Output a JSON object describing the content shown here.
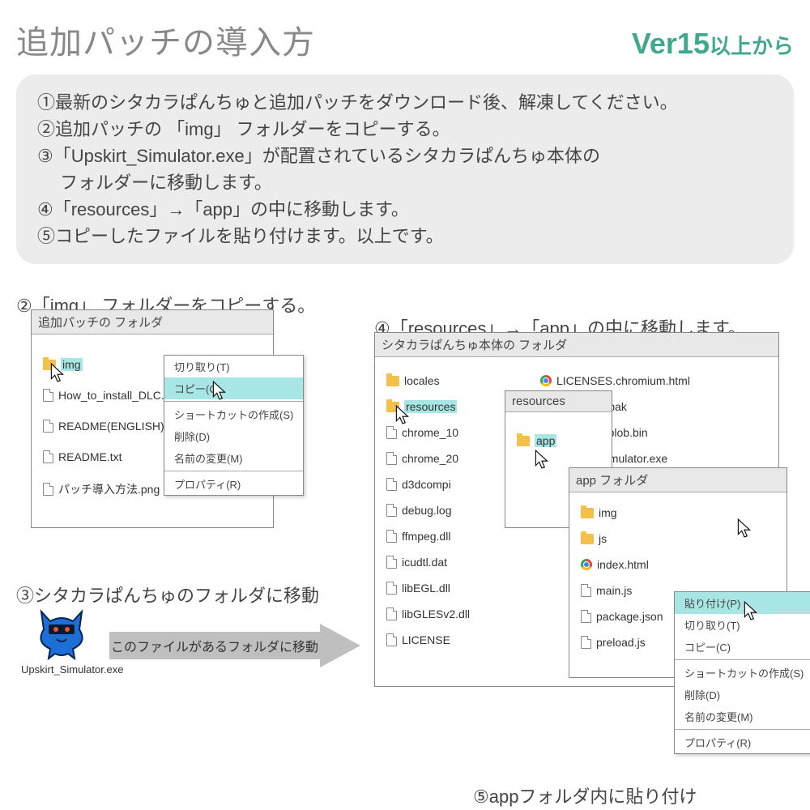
{
  "header": {
    "title": "追加パッチの導入方",
    "version_main": "Ver15",
    "version_suffix": "以上から"
  },
  "steps": {
    "s1": "①最新のシタカラぱんちゅと追加パッチをダウンロード後、解凍してください。",
    "s2": "②追加パッチの 「img」 フォルダーをコピーする。",
    "s3a": "③「Upskirt_Simulator.exe」が配置されているシタカラぱんちゅ本体の",
    "s3b": "　 フォルダーに移動します。",
    "s4": "④「resources」→「app」の中に移動します。",
    "s5": "⑤コピーしたファイルを貼り付けます。以上です。"
  },
  "labels": {
    "step2": "②「img」 フォルダーをコピーする。",
    "step3": "③シタカラぱんちゅのフォルダに移動",
    "step4": "④「resources」→「app」の中に移動します。",
    "step5": "⑤appフォルダ内に貼り付け",
    "arrow": "このファイルがあるフォルダに移動",
    "cat_caption": "Upskirt_Simulator.exe"
  },
  "windows": {
    "patch": {
      "title": "追加パッチの フォルダ",
      "items": [
        {
          "icon": "folder",
          "name": "img",
          "hl": true
        },
        {
          "icon": "file",
          "name": "How_to_install_DLC.jpg"
        },
        {
          "icon": "file",
          "name": "README(ENGLISH).txt"
        },
        {
          "icon": "file",
          "name": "README.txt"
        },
        {
          "icon": "file",
          "name": "パッチ導入方法.png"
        }
      ]
    },
    "main": {
      "title": "シタカラぱんちゅ本体の フォルダ",
      "left": [
        {
          "icon": "folder",
          "name": "locales"
        },
        {
          "icon": "folder",
          "name": "resources",
          "hl": true
        },
        {
          "icon": "file",
          "name": "chrome_10"
        },
        {
          "icon": "file",
          "name": "chrome_20"
        },
        {
          "icon": "file",
          "name": "d3dcompi"
        },
        {
          "icon": "file",
          "name": "debug.log"
        },
        {
          "icon": "file",
          "name": "ffmpeg.dll"
        },
        {
          "icon": "file",
          "name": "icudtl.dat"
        },
        {
          "icon": "file",
          "name": "libEGL.dll"
        },
        {
          "icon": "file",
          "name": "libGLESv2.dll"
        },
        {
          "icon": "file",
          "name": "LICENSE"
        }
      ],
      "right": [
        {
          "icon": "chrome",
          "name": "LICENSES.chromium.html"
        },
        {
          "icon": "file",
          "name": "resources.pak"
        },
        {
          "icon": "file",
          "name": "snapshot_blob.bin"
        },
        {
          "icon": "exe",
          "name": "Upskirt_Simulator.exe"
        }
      ]
    },
    "resources": {
      "title": "resources",
      "items": [
        {
          "icon": "folder",
          "name": "app",
          "hl": true
        }
      ]
    },
    "app": {
      "title": "app フォルダ",
      "items": [
        {
          "icon": "folder",
          "name": "img"
        },
        {
          "icon": "folder",
          "name": "js"
        },
        {
          "icon": "chrome",
          "name": "index.html"
        },
        {
          "icon": "file",
          "name": "main.js"
        },
        {
          "icon": "file",
          "name": "package.json"
        },
        {
          "icon": "file",
          "name": "preload.js"
        }
      ]
    }
  },
  "context_menus": {
    "copy": {
      "items": [
        {
          "label": "切り取り(T)"
        },
        {
          "label": "コピー(C)",
          "hl": true
        },
        {
          "sep": true
        },
        {
          "label": "ショートカットの作成(S)"
        },
        {
          "label": "削除(D)"
        },
        {
          "label": "名前の変更(M)"
        },
        {
          "sep": true
        },
        {
          "label": "プロパティ(R)"
        }
      ]
    },
    "paste": {
      "items": [
        {
          "label": "貼り付け(P)",
          "hl": true
        },
        {
          "label": "切り取り(T)"
        },
        {
          "label": "コピー(C)"
        },
        {
          "sep": true
        },
        {
          "label": "ショートカットの作成(S)"
        },
        {
          "label": "削除(D)"
        },
        {
          "label": "名前の変更(M)"
        },
        {
          "sep": true
        },
        {
          "label": "プロパティ(R)"
        }
      ]
    }
  },
  "colors": {
    "title_gray": "#888888",
    "version_green": "#3fa88f",
    "steps_bg": "#ececec",
    "highlight": "#a8e6e6",
    "folder": "#f5c04a",
    "arrow_gray": "#bfbfbf"
  }
}
